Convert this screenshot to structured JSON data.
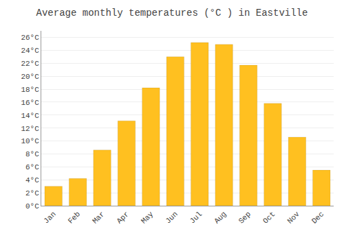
{
  "chart_data": {
    "type": "bar",
    "title": "Average monthly temperatures (°C ) in Eastville",
    "categories": [
      "Jan",
      "Feb",
      "Mar",
      "Apr",
      "May",
      "Jun",
      "Jul",
      "Aug",
      "Sep",
      "Oct",
      "Nov",
      "Dec"
    ],
    "values": [
      3.0,
      4.2,
      8.6,
      13.1,
      18.2,
      23.0,
      25.2,
      24.9,
      21.7,
      15.8,
      10.6,
      5.5
    ],
    "color": "#FFC020",
    "ylim": [
      0,
      27
    ],
    "yticks": [
      {
        "value": 0,
        "label": "0°C"
      },
      {
        "value": 2,
        "label": "2°C"
      },
      {
        "value": 4,
        "label": "4°C"
      },
      {
        "value": 6,
        "label": "6°C"
      },
      {
        "value": 8,
        "label": "8°C"
      },
      {
        "value": 10,
        "label": "10°C"
      },
      {
        "value": 12,
        "label": "12°C"
      },
      {
        "value": 14,
        "label": "14°C"
      },
      {
        "value": 16,
        "label": "16°C"
      },
      {
        "value": 18,
        "label": "18°C"
      },
      {
        "value": 20,
        "label": "20°C"
      },
      {
        "value": 22,
        "label": "22°C"
      },
      {
        "value": 24,
        "label": "24°C"
      },
      {
        "value": 26,
        "label": "26°C"
      }
    ],
    "grid": true
  }
}
